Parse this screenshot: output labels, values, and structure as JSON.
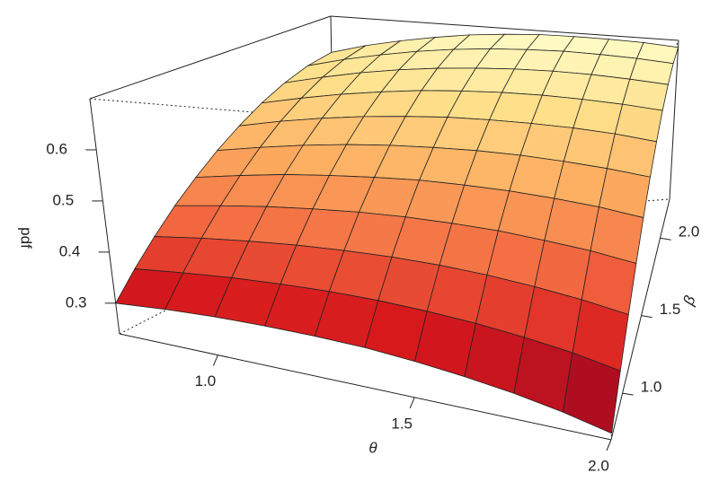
{
  "chart_data": {
    "type": "surface",
    "xlabel": "θ",
    "ylabel": "β",
    "zlabel": "pdf",
    "xlim": [
      0.75,
      2
    ],
    "ylim": [
      0.7,
      2.25
    ],
    "zlim": [
      0.24,
      0.7
    ],
    "xticks": [
      {
        "value": 1,
        "label": "1.0"
      },
      1.5,
      {
        "value": 2,
        "label": "2.0"
      }
    ],
    "yticks": [
      {
        "value": 1,
        "label": "1.0"
      },
      1.5,
      {
        "value": 2,
        "label": "2.0"
      }
    ],
    "zticks": [
      0.3,
      0.4,
      0.5,
      0.6
    ],
    "colors": [
      "#800026",
      "#d7191c",
      "#f46d43",
      "#fdae61",
      "#fee08b",
      "#ffffcc"
    ],
    "x": [
      0.75,
      0.875,
      1,
      1.125,
      1.25,
      1.375,
      1.5,
      1.625,
      1.75,
      1.875,
      2
    ],
    "y": [
      0.7,
      0.855,
      1.01,
      1.165,
      1.32,
      1.475,
      1.63,
      1.785,
      1.94,
      2.095,
      2.25
    ],
    "z": [
      [
        0.3,
        0.307,
        0.311,
        0.312,
        0.311,
        0.308,
        0.301,
        0.292,
        0.281,
        0.267,
        0.25
      ],
      [
        0.347,
        0.355,
        0.361,
        0.364,
        0.365,
        0.363,
        0.358,
        0.351,
        0.341,
        0.329,
        0.313
      ],
      [
        0.391,
        0.401,
        0.408,
        0.413,
        0.415,
        0.415,
        0.412,
        0.406,
        0.397,
        0.386,
        0.372
      ],
      [
        0.433,
        0.444,
        0.453,
        0.459,
        0.463,
        0.464,
        0.462,
        0.458,
        0.45,
        0.441,
        0.428
      ],
      [
        0.471,
        0.484,
        0.495,
        0.502,
        0.507,
        0.51,
        0.509,
        0.506,
        0.5,
        0.492,
        0.48
      ],
      [
        0.507,
        0.521,
        0.533,
        0.542,
        0.548,
        0.551,
        0.552,
        0.55,
        0.545,
        0.538,
        0.528
      ],
      [
        0.539,
        0.555,
        0.568,
        0.578,
        0.585,
        0.59,
        0.591,
        0.59,
        0.587,
        0.581,
        0.571
      ],
      [
        0.568,
        0.584,
        0.598,
        0.609,
        0.618,
        0.623,
        0.626,
        0.626,
        0.623,
        0.618,
        0.61
      ],
      [
        0.592,
        0.609,
        0.624,
        0.636,
        0.645,
        0.651,
        0.655,
        0.656,
        0.654,
        0.649,
        0.642
      ],
      [
        0.61,
        0.628,
        0.643,
        0.656,
        0.666,
        0.673,
        0.677,
        0.679,
        0.677,
        0.673,
        0.666
      ],
      [
        0.62,
        0.639,
        0.654,
        0.667,
        0.678,
        0.685,
        0.69,
        0.691,
        0.69,
        0.687,
        0.68
      ]
    ]
  }
}
